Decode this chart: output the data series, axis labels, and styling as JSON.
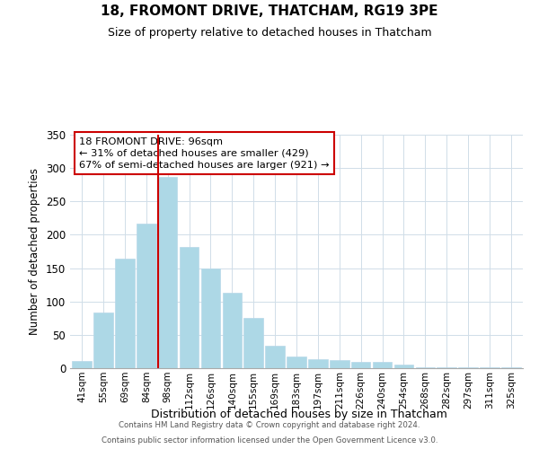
{
  "title": "18, FROMONT DRIVE, THATCHAM, RG19 3PE",
  "subtitle": "Size of property relative to detached houses in Thatcham",
  "xlabel": "Distribution of detached houses by size in Thatcham",
  "ylabel": "Number of detached properties",
  "categories": [
    "41sqm",
    "55sqm",
    "69sqm",
    "84sqm",
    "98sqm",
    "112sqm",
    "126sqm",
    "140sqm",
    "155sqm",
    "169sqm",
    "183sqm",
    "197sqm",
    "211sqm",
    "226sqm",
    "240sqm",
    "254sqm",
    "268sqm",
    "282sqm",
    "297sqm",
    "311sqm",
    "325sqm"
  ],
  "values": [
    11,
    84,
    164,
    217,
    287,
    182,
    150,
    113,
    75,
    34,
    18,
    13,
    12,
    9,
    9,
    5,
    2,
    1,
    1,
    1,
    2
  ],
  "bar_color": "#add8e6",
  "bar_edge_color": "#b8d8e8",
  "highlight_index": 4,
  "highlight_line_color": "#cc0000",
  "ylim": [
    0,
    350
  ],
  "yticks": [
    0,
    50,
    100,
    150,
    200,
    250,
    300,
    350
  ],
  "annotation_line1": "18 FROMONT DRIVE: 96sqm",
  "annotation_line2": "← 31% of detached houses are smaller (429)",
  "annotation_line3": "67% of semi-detached houses are larger (921) →",
  "annotation_box_edge": "#cc0000",
  "footer_line1": "Contains HM Land Registry data © Crown copyright and database right 2024.",
  "footer_line2": "Contains public sector information licensed under the Open Government Licence v3.0.",
  "background_color": "#ffffff",
  "grid_color": "#d0dde8"
}
